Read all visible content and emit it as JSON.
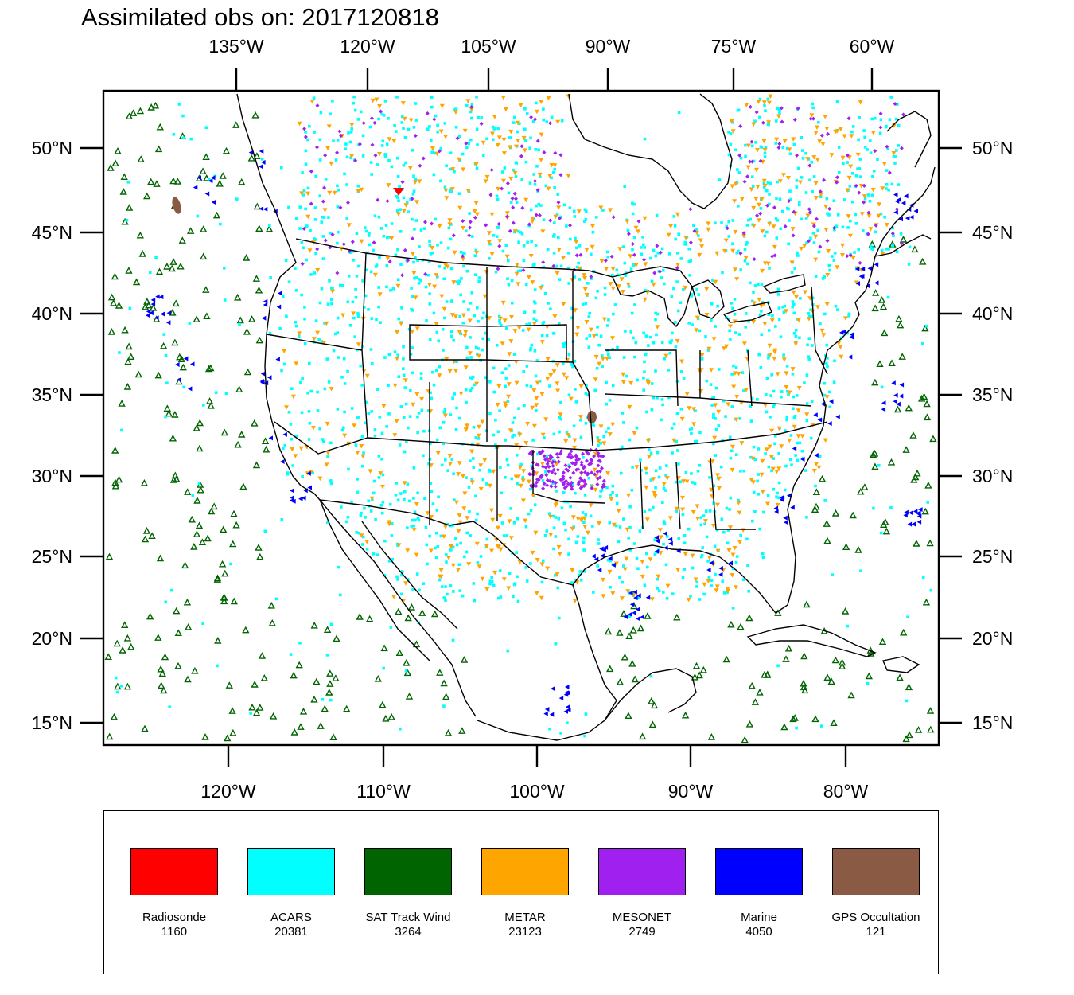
{
  "title": "Assimilated obs on: 2017120818",
  "map": {
    "top_lon_labels": [
      "135°W",
      "120°W",
      "105°W",
      "90°W",
      "75°W",
      "60°W"
    ],
    "bottom_lon_labels": [
      "120°W",
      "110°W",
      "100°W",
      "90°W",
      "80°W"
    ],
    "lat_labels": [
      "50°N",
      "45°N",
      "40°N",
      "35°N",
      "30°N",
      "25°N",
      "20°N",
      "15°N"
    ]
  },
  "legend": {
    "items": [
      {
        "label": "Radiosonde",
        "count": "1160",
        "color": "#ff0000"
      },
      {
        "label": "ACARS",
        "count": "20381",
        "color": "#00ffff"
      },
      {
        "label": "SAT Track Wind",
        "count": "3264",
        "color": "#006400"
      },
      {
        "label": "METAR",
        "count": "23123",
        "color": "#ffa500"
      },
      {
        "label": "MESONET",
        "count": "2749",
        "color": "#a020f0"
      },
      {
        "label": "Marine",
        "count": "4050",
        "color": "#0000ff"
      },
      {
        "label": "GPS Occultation",
        "count": "121",
        "color": "#8b5a45"
      }
    ]
  }
}
